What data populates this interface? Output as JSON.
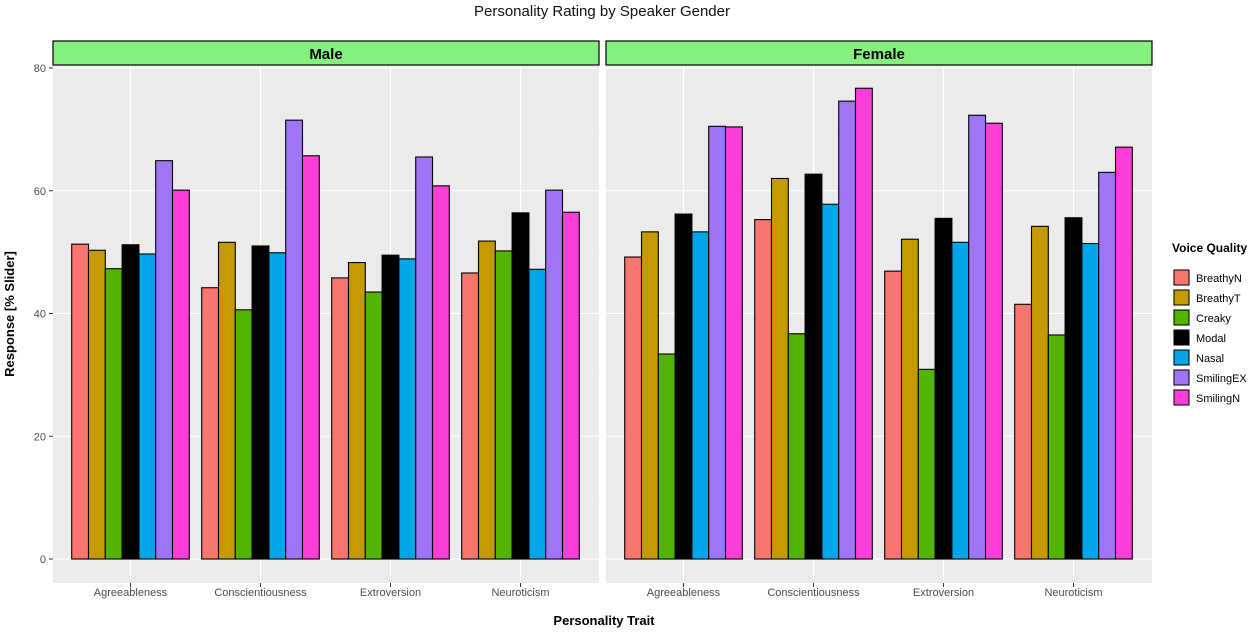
{
  "chart_data": {
    "type": "bar",
    "title": "Personality Rating by Speaker Gender",
    "xlabel": "Personality Trait",
    "ylabel": "Response [% Slider]",
    "ylim": [
      0,
      80
    ],
    "yticks": [
      0,
      20,
      40,
      60,
      80
    ],
    "grid": true,
    "legend": {
      "title": "Voice Quality",
      "placement": "right"
    },
    "categories": [
      "Agreeableness",
      "Conscientiousness",
      "Extroversion",
      "Neuroticism"
    ],
    "panels": [
      {
        "name": "Male",
        "series": [
          {
            "name": "BreathyN",
            "color": "#F8766D",
            "values": [
              51.3,
              44.2,
              45.8,
              46.6
            ]
          },
          {
            "name": "BreathyT",
            "color": "#C49A00",
            "values": [
              50.3,
              51.6,
              48.3,
              51.8
            ]
          },
          {
            "name": "Creaky",
            "color": "#53B400",
            "values": [
              47.3,
              40.6,
              43.5,
              50.2
            ]
          },
          {
            "name": "Modal",
            "color": "#000000",
            "values": [
              51.2,
              51.0,
              49.5,
              56.4
            ]
          },
          {
            "name": "Nasal",
            "color": "#00A6E8",
            "values": [
              49.7,
              49.9,
              48.9,
              47.2
            ]
          },
          {
            "name": "SmilingEX",
            "color": "#A074F7",
            "values": [
              64.9,
              71.5,
              65.5,
              60.1
            ]
          },
          {
            "name": "SmilingN",
            "color": "#FB3ED7",
            "values": [
              60.1,
              65.7,
              60.8,
              56.5
            ]
          }
        ]
      },
      {
        "name": "Female",
        "series": [
          {
            "name": "BreathyN",
            "color": "#F8766D",
            "values": [
              49.2,
              55.3,
              46.9,
              41.5
            ]
          },
          {
            "name": "BreathyT",
            "color": "#C49A00",
            "values": [
              53.3,
              62.0,
              52.1,
              54.2
            ]
          },
          {
            "name": "Creaky",
            "color": "#53B400",
            "values": [
              33.4,
              36.7,
              30.9,
              36.5
            ]
          },
          {
            "name": "Modal",
            "color": "#000000",
            "values": [
              56.2,
              62.7,
              55.5,
              55.6
            ]
          },
          {
            "name": "Nasal",
            "color": "#00A6E8",
            "values": [
              53.3,
              57.8,
              51.6,
              51.4
            ]
          },
          {
            "name": "SmilingEX",
            "color": "#A074F7",
            "values": [
              70.5,
              74.6,
              72.3,
              63.0
            ]
          },
          {
            "name": "SmilingN",
            "color": "#FB3ED7",
            "values": [
              70.4,
              76.7,
              71.0,
              67.1
            ]
          }
        ]
      }
    ]
  }
}
